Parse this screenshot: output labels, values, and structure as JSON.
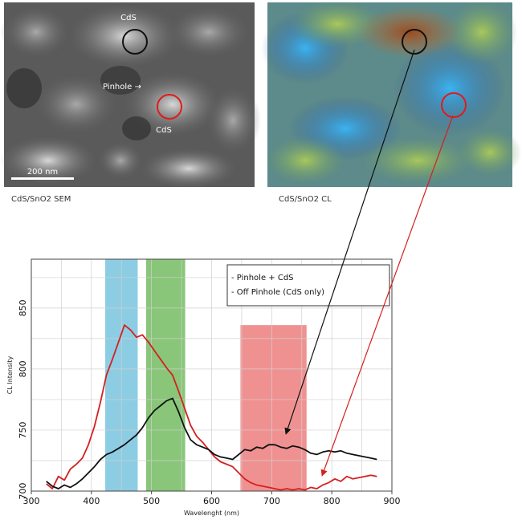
{
  "sem_panel": {
    "caption": "CdS/SnO2 SEM",
    "labels": {
      "cds_top": "CdS",
      "pinhole": "Pinhole →",
      "cds_bottom": "CdS"
    },
    "scale_bar": "200 nm"
  },
  "cl_panel": {
    "caption": "CdS/SnO2 CL"
  },
  "chart_data": {
    "type": "line",
    "xlabel": "Wavelenght (nm)",
    "ylabel": "CL Intensity",
    "xlim": [
      300,
      900
    ],
    "ylim": [
      700,
      890
    ],
    "xticks": [
      300,
      400,
      500,
      600,
      700,
      800,
      900
    ],
    "yticks": [
      700,
      750,
      800,
      850
    ],
    "grid": true,
    "legend": {
      "placement": "top-right",
      "entries": [
        "- Pinhole + CdS",
        "- Off Pinhole (CdS only)"
      ]
    },
    "bands": [
      {
        "from": 423,
        "to": 477,
        "color": "#7fc8e0",
        "ymax": 890
      },
      {
        "from": 491,
        "to": 556,
        "color": "#7cc06a",
        "ymax": 890
      },
      {
        "from": 648,
        "to": 758,
        "color": "#ee8585",
        "ymax": 836
      }
    ],
    "series": [
      {
        "color": "#d42020",
        "x": [
          325,
          335,
          345,
          355,
          365,
          375,
          385,
          395,
          405,
          415,
          425,
          435,
          445,
          455,
          465,
          475,
          485,
          495,
          505,
          515,
          525,
          535,
          545,
          555,
          565,
          575,
          585,
          595,
          605,
          615,
          625,
          635,
          645,
          655,
          665,
          675,
          685,
          695,
          705,
          715,
          725,
          735,
          745,
          755,
          765,
          775,
          785,
          795,
          805,
          815,
          825,
          835,
          845,
          855,
          865,
          875
        ],
        "y": [
          706,
          702,
          712,
          709,
          718,
          722,
          727,
          738,
          753,
          773,
          795,
          808,
          822,
          836,
          832,
          826,
          828,
          822,
          815,
          808,
          801,
          795,
          782,
          768,
          754,
          745,
          740,
          734,
          728,
          724,
          722,
          720,
          715,
          710,
          707,
          705,
          704,
          703,
          702,
          701,
          702,
          701,
          702,
          701,
          703,
          702,
          705,
          707,
          710,
          708,
          712,
          710,
          711,
          712,
          713,
          712
        ]
      },
      {
        "color": "#111111",
        "x": [
          325,
          335,
          345,
          355,
          365,
          375,
          385,
          395,
          405,
          415,
          425,
          435,
          445,
          455,
          465,
          475,
          485,
          495,
          505,
          515,
          525,
          535,
          545,
          555,
          565,
          575,
          585,
          595,
          605,
          615,
          625,
          635,
          645,
          655,
          665,
          675,
          685,
          695,
          705,
          715,
          725,
          735,
          745,
          755,
          765,
          775,
          785,
          795,
          805,
          815,
          825,
          835,
          845,
          855,
          865,
          875
        ],
        "y": [
          708,
          704,
          702,
          705,
          703,
          706,
          710,
          715,
          720,
          726,
          730,
          732,
          735,
          738,
          742,
          746,
          752,
          760,
          766,
          770,
          774,
          776,
          765,
          752,
          742,
          738,
          736,
          734,
          730,
          728,
          727,
          726,
          730,
          734,
          733,
          736,
          735,
          738,
          738,
          736,
          735,
          737,
          736,
          734,
          731,
          730,
          732,
          733,
          732,
          733,
          731,
          730,
          729,
          728,
          727,
          726
        ]
      }
    ]
  }
}
